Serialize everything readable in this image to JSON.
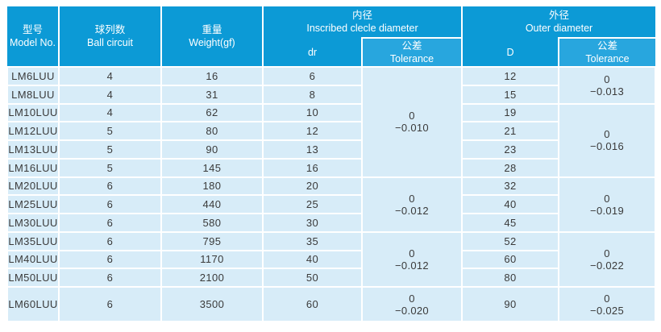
{
  "colors": {
    "header_blue": "#0C9AD6",
    "tolerance_header_blue": "#28A6DE",
    "row_background": "#D7ECF8",
    "header_text": "#FFFFFF",
    "body_text": "#3A3A3A"
  },
  "table": {
    "headers": {
      "model": {
        "zh": "型号",
        "en": "Model No."
      },
      "ball_circuit": {
        "zh": "球列数",
        "en": "Ball circuit"
      },
      "weight": {
        "zh": "重量",
        "en": "Weight(gf)"
      },
      "inner_section": {
        "zh": "内径",
        "en": "Inscribed clecle diameter"
      },
      "dr": "dr",
      "inner_tolerance": {
        "zh": "公差",
        "en": "Tolerance"
      },
      "outer_section": {
        "zh": "外径",
        "en": "Outer diameter"
      },
      "D": "D",
      "outer_tolerance": {
        "zh": "公差",
        "en": "Tolerance"
      }
    },
    "rows": [
      {
        "model": "LM6LUU",
        "ball_circuit": "4",
        "weight": "16",
        "dr": "6",
        "D": "12"
      },
      {
        "model": "LM8LUU",
        "ball_circuit": "4",
        "weight": "31",
        "dr": "8",
        "D": "15"
      },
      {
        "model": "LM10LUU",
        "ball_circuit": "4",
        "weight": "62",
        "dr": "10",
        "D": "19"
      },
      {
        "model": "LM12LUU",
        "ball_circuit": "5",
        "weight": "80",
        "dr": "12",
        "D": "21"
      },
      {
        "model": "LM13LUU",
        "ball_circuit": "5",
        "weight": "90",
        "dr": "13",
        "D": "23"
      },
      {
        "model": "LM16LUU",
        "ball_circuit": "5",
        "weight": "145",
        "dr": "16",
        "D": "28"
      },
      {
        "model": "LM20LUU",
        "ball_circuit": "6",
        "weight": "180",
        "dr": "20",
        "D": "32"
      },
      {
        "model": "LM25LUU",
        "ball_circuit": "6",
        "weight": "440",
        "dr": "25",
        "D": "40"
      },
      {
        "model": "LM30LUU",
        "ball_circuit": "6",
        "weight": "580",
        "dr": "30",
        "D": "45"
      },
      {
        "model": "LM35LUU",
        "ball_circuit": "6",
        "weight": "795",
        "dr": "35",
        "D": "52"
      },
      {
        "model": "LM40LUU",
        "ball_circuit": "6",
        "weight": "1170",
        "dr": "40",
        "D": "60"
      },
      {
        "model": "LM50LUU",
        "ball_circuit": "6",
        "weight": "2100",
        "dr": "50",
        "D": "80"
      },
      {
        "model": "LM60LUU",
        "ball_circuit": "6",
        "weight": "3500",
        "dr": "60",
        "D": "90"
      }
    ],
    "inner_tolerance_groups": [
      {
        "span": 6,
        "lines": [
          "0",
          "−0.010"
        ]
      },
      {
        "span": 3,
        "lines": [
          "0",
          "−0.012"
        ]
      },
      {
        "span": 3,
        "lines": [
          "0",
          "−0.012"
        ]
      },
      {
        "span": 1,
        "lines": [
          "0",
          "−0.020"
        ]
      }
    ],
    "outer_tolerance_groups": [
      {
        "span": 2,
        "lines": [
          "0",
          "−0.013"
        ]
      },
      {
        "span": 4,
        "lines": [
          "0",
          "−0.016"
        ]
      },
      {
        "span": 3,
        "lines": [
          "0",
          "−0.019"
        ]
      },
      {
        "span": 3,
        "lines": [
          "0",
          "−0.022"
        ]
      },
      {
        "span": 1,
        "lines": [
          "0",
          "−0.025"
        ]
      }
    ]
  }
}
